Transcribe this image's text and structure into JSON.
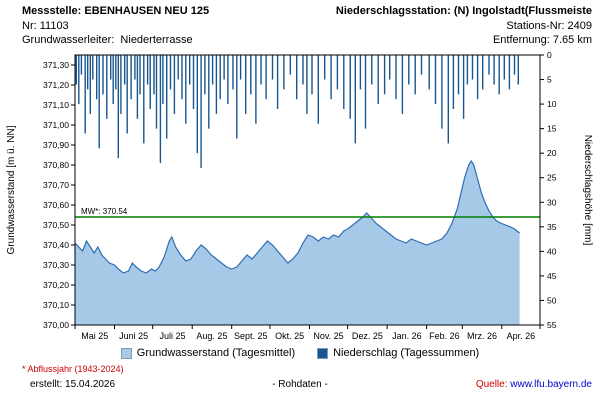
{
  "header": {
    "line1_left": "Messstelle: EBENHAUSEN NEU 125",
    "line1_right": "Niederschlagsstation: (N) Ingolstadt(Flussmeiste",
    "line2_left": "Nr: 11103",
    "line2_right": "Stations-Nr: 2409",
    "line3_left": "Grundwasserleiter:  Niederterrasse",
    "line3_right": "Entfernung: 7.65 km"
  },
  "legend": {
    "gw": "Grundwasserstand (Tagesmittel)",
    "ns": "Niederschlag (Tagessummen)"
  },
  "footer": {
    "footnote": "* Abflussjahr (1943-2024)",
    "erstellt": "erstellt:  15.04.2026",
    "center": "- Rohdaten -",
    "quelle_label": "Quelle: ",
    "quelle_link": "www.lfu.bayern.de"
  },
  "colors": {
    "area_fill": "#A6C9E8",
    "area_stroke": "#2E6DB4",
    "precip_bar": "#17568F",
    "mw_line": "#008000",
    "footnote_red": "#CC0000",
    "quelle_red": "#CC0000",
    "link_blue": "#0000CC"
  },
  "chart_data": {
    "type": "area",
    "title": "",
    "x_axis": {
      "labels": [
        "Mai 25",
        "Juni 25",
        "Juli 25",
        "Aug. 25",
        "Sept. 25",
        "Okt. 25",
        "Nov. 25",
        "Dez. 25",
        "Jan. 26",
        "Feb. 26",
        "Mrz. 26",
        "Apr. 26"
      ],
      "total_days": 365,
      "month_boundaries": [
        0,
        31,
        61,
        92,
        123,
        153,
        184,
        214,
        245,
        276,
        304,
        335,
        365
      ]
    },
    "left_axis": {
      "label": "Grundwasserstand [m ü. NN]",
      "min": 370.0,
      "max": 371.35,
      "tick_min": 370.0,
      "tick_max": 371.3,
      "tick_step": 0.1,
      "tick_format": "comma_decimal"
    },
    "right_axis": {
      "label": "Niederschlagshöhe [mm]",
      "min": 0,
      "max": 55,
      "tick_step": 5,
      "inverted": true
    },
    "reference_line": {
      "label": "MW*: 370.54",
      "value": 370.54
    },
    "series": [
      {
        "name": "Grundwasserstand (Tagesmittel)",
        "type": "area",
        "axis": "left",
        "unit": "m ü. NN",
        "points": [
          [
            0,
            370.41
          ],
          [
            3,
            370.39
          ],
          [
            6,
            370.37
          ],
          [
            9,
            370.42
          ],
          [
            12,
            370.39
          ],
          [
            15,
            370.36
          ],
          [
            18,
            370.39
          ],
          [
            21,
            370.35
          ],
          [
            24,
            370.33
          ],
          [
            27,
            370.31
          ],
          [
            31,
            370.3
          ],
          [
            34,
            370.28
          ],
          [
            38,
            370.26
          ],
          [
            42,
            370.27
          ],
          [
            45,
            370.31
          ],
          [
            48,
            370.29
          ],
          [
            52,
            370.27
          ],
          [
            56,
            370.26
          ],
          [
            60,
            370.28
          ],
          [
            63,
            370.27
          ],
          [
            66,
            370.29
          ],
          [
            70,
            370.34
          ],
          [
            74,
            370.42
          ],
          [
            76,
            370.44
          ],
          [
            79,
            370.39
          ],
          [
            83,
            370.35
          ],
          [
            87,
            370.32
          ],
          [
            91,
            370.33
          ],
          [
            95,
            370.37
          ],
          [
            99,
            370.4
          ],
          [
            103,
            370.38
          ],
          [
            107,
            370.35
          ],
          [
            111,
            370.33
          ],
          [
            115,
            370.31
          ],
          [
            119,
            370.29
          ],
          [
            123,
            370.28
          ],
          [
            127,
            370.29
          ],
          [
            131,
            370.32
          ],
          [
            135,
            370.35
          ],
          [
            139,
            370.33
          ],
          [
            143,
            370.36
          ],
          [
            147,
            370.39
          ],
          [
            151,
            370.42
          ],
          [
            155,
            370.4
          ],
          [
            159,
            370.37
          ],
          [
            163,
            370.34
          ],
          [
            167,
            370.31
          ],
          [
            171,
            370.33
          ],
          [
            175,
            370.36
          ],
          [
            179,
            370.41
          ],
          [
            183,
            370.45
          ],
          [
            187,
            370.44
          ],
          [
            191,
            370.42
          ],
          [
            195,
            370.44
          ],
          [
            199,
            370.43
          ],
          [
            203,
            370.45
          ],
          [
            207,
            370.44
          ],
          [
            211,
            370.47
          ],
          [
            214,
            370.48
          ],
          [
            218,
            370.5
          ],
          [
            222,
            370.52
          ],
          [
            226,
            370.54
          ],
          [
            229,
            370.56
          ],
          [
            232,
            370.54
          ],
          [
            236,
            370.51
          ],
          [
            240,
            370.49
          ],
          [
            244,
            370.47
          ],
          [
            248,
            370.45
          ],
          [
            252,
            370.43
          ],
          [
            256,
            370.42
          ],
          [
            260,
            370.41
          ],
          [
            264,
            370.43
          ],
          [
            268,
            370.42
          ],
          [
            272,
            370.41
          ],
          [
            276,
            370.4
          ],
          [
            280,
            370.41
          ],
          [
            284,
            370.42
          ],
          [
            288,
            370.43
          ],
          [
            292,
            370.46
          ],
          [
            296,
            370.51
          ],
          [
            300,
            370.58
          ],
          [
            303,
            370.66
          ],
          [
            306,
            370.74
          ],
          [
            309,
            370.8
          ],
          [
            311,
            370.82
          ],
          [
            313,
            370.8
          ],
          [
            316,
            370.73
          ],
          [
            319,
            370.66
          ],
          [
            322,
            370.61
          ],
          [
            325,
            370.57
          ],
          [
            328,
            370.54
          ],
          [
            331,
            370.52
          ],
          [
            334,
            370.51
          ],
          [
            338,
            370.5
          ],
          [
            342,
            370.49
          ],
          [
            345,
            370.48
          ],
          [
            347,
            370.47
          ],
          [
            349,
            370.46
          ]
        ]
      },
      {
        "name": "Niederschlag (Tagessummen)",
        "type": "bar",
        "axis": "right",
        "unit": "mm",
        "points": [
          [
            1,
            6
          ],
          [
            3,
            10
          ],
          [
            5,
            4
          ],
          [
            8,
            16
          ],
          [
            10,
            7
          ],
          [
            12,
            12
          ],
          [
            14,
            5
          ],
          [
            17,
            9
          ],
          [
            19,
            19
          ],
          [
            22,
            8
          ],
          [
            25,
            13
          ],
          [
            28,
            5
          ],
          [
            30,
            10
          ],
          [
            32,
            7
          ],
          [
            34,
            21
          ],
          [
            36,
            12
          ],
          [
            39,
            6
          ],
          [
            41,
            16
          ],
          [
            44,
            9
          ],
          [
            47,
            5
          ],
          [
            49,
            13
          ],
          [
            51,
            8
          ],
          [
            54,
            18
          ],
          [
            57,
            6
          ],
          [
            59,
            11
          ],
          [
            62,
            8
          ],
          [
            64,
            15
          ],
          [
            67,
            22
          ],
          [
            69,
            10
          ],
          [
            72,
            17
          ],
          [
            75,
            7
          ],
          [
            78,
            12
          ],
          [
            81,
            5
          ],
          [
            84,
            9
          ],
          [
            87,
            14
          ],
          [
            90,
            6
          ],
          [
            93,
            11
          ],
          [
            96,
            20
          ],
          [
            99,
            23
          ],
          [
            102,
            8
          ],
          [
            105,
            15
          ],
          [
            108,
            6
          ],
          [
            111,
            12
          ],
          [
            114,
            9
          ],
          [
            117,
            5
          ],
          [
            120,
            10
          ],
          [
            124,
            7
          ],
          [
            127,
            17
          ],
          [
            130,
            5
          ],
          [
            134,
            12
          ],
          [
            138,
            8
          ],
          [
            142,
            14
          ],
          [
            146,
            6
          ],
          [
            150,
            9
          ],
          [
            155,
            5
          ],
          [
            159,
            11
          ],
          [
            164,
            7
          ],
          [
            169,
            4
          ],
          [
            174,
            9
          ],
          [
            179,
            6
          ],
          [
            182,
            12
          ],
          [
            186,
            8
          ],
          [
            191,
            14
          ],
          [
            196,
            5
          ],
          [
            201,
            9
          ],
          [
            206,
            7
          ],
          [
            211,
            11
          ],
          [
            216,
            13
          ],
          [
            220,
            18
          ],
          [
            224,
            7
          ],
          [
            228,
            15
          ],
          [
            233,
            6
          ],
          [
            238,
            10
          ],
          [
            243,
            8
          ],
          [
            247,
            5
          ],
          [
            252,
            9
          ],
          [
            257,
            12
          ],
          [
            262,
            6
          ],
          [
            267,
            8
          ],
          [
            272,
            4
          ],
          [
            278,
            7
          ],
          [
            283,
            10
          ],
          [
            288,
            15
          ],
          [
            293,
            18
          ],
          [
            297,
            11
          ],
          [
            301,
            8
          ],
          [
            305,
            13
          ],
          [
            308,
            6
          ],
          [
            312,
            5
          ],
          [
            316,
            9
          ],
          [
            320,
            7
          ],
          [
            325,
            4
          ],
          [
            329,
            6
          ],
          [
            333,
            8
          ],
          [
            337,
            5
          ],
          [
            341,
            7
          ],
          [
            345,
            4
          ],
          [
            348,
            6
          ]
        ]
      }
    ]
  }
}
